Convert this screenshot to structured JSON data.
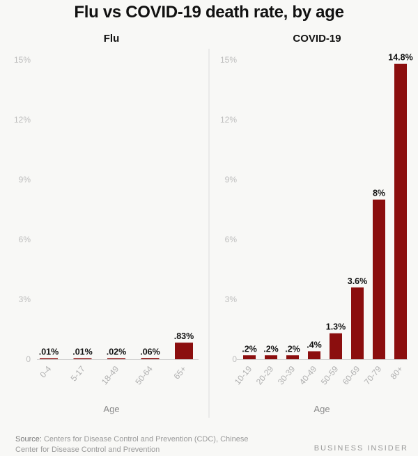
{
  "title": "Flu vs COVID-19 death rate, by age",
  "source_label": "Source:",
  "source_text": "Centers for Disease Control and Prevention (CDC), Chinese Center for Disease Control and Prevention",
  "brand": "BUSINESS INSIDER",
  "colors": {
    "bar": "#8b0e0e",
    "grid_divider": "#dcdcdc",
    "baseline": "#d0d0d0"
  },
  "chart_data": [
    {
      "type": "bar",
      "title": "Flu",
      "xlabel": "Age",
      "ylabel": "",
      "ylim": [
        0,
        15
      ],
      "yticks": [
        "0",
        "3%",
        "6%",
        "9%",
        "12%",
        "15%"
      ],
      "categories": [
        "0-4",
        "5-17",
        "18-49",
        "50-64",
        "65+"
      ],
      "values": [
        0.01,
        0.01,
        0.02,
        0.06,
        0.83
      ],
      "labels": [
        ".01%",
        ".01%",
        ".02%",
        ".06%",
        ".83%"
      ],
      "grid": false
    },
    {
      "type": "bar",
      "title": "COVID-19",
      "xlabel": "Age",
      "ylabel": "",
      "ylim": [
        0,
        15
      ],
      "yticks": [
        "0",
        "3%",
        "6%",
        "9%",
        "12%",
        "15%"
      ],
      "categories": [
        "10-19",
        "20-29",
        "30-39",
        "40-49",
        "50-59",
        "60-69",
        "70-79",
        "80+"
      ],
      "values": [
        0.2,
        0.2,
        0.2,
        0.4,
        1.3,
        3.6,
        8,
        14.8
      ],
      "labels": [
        ".2%",
        ".2%",
        ".2%",
        ".4%",
        "1.3%",
        "3.6%",
        "8%",
        "14.8%"
      ],
      "grid": false
    }
  ]
}
